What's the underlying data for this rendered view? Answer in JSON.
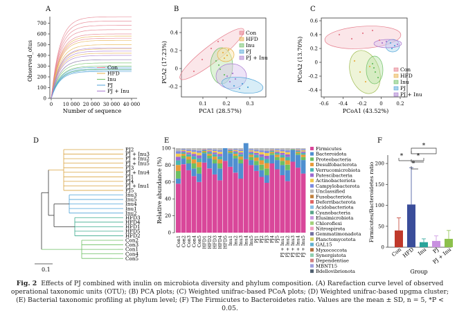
{
  "panels": {
    "A": {
      "label": "A",
      "ylabel": "Observed_otus",
      "xlabel": "Number of sequence",
      "yticks": [
        "0",
        "100",
        "200",
        "300",
        "400",
        "500",
        "600",
        "700"
      ],
      "xticks": [
        "0",
        "10 000",
        "20 000",
        "30 000",
        "40 000"
      ],
      "legend": [
        "Con",
        "HFD",
        "Inu",
        "PJ",
        "PJ + Inu"
      ]
    },
    "B": {
      "label": "B",
      "ylabel": "PCA2 (17.23%)",
      "xlabel": "PCA1 (28.57%)",
      "yticks": [
        "0.4",
        "0.2",
        "0",
        "-0.2"
      ],
      "xticks": [
        "0.1",
        "0.2",
        "0.3"
      ],
      "legend": [
        "Con",
        "HFD",
        "Inu",
        "PJ",
        "PJ + Inu"
      ]
    },
    "C": {
      "label": "C",
      "ylabel": "PCoA2 (13.70%)",
      "xlabel": "PCoA1 (43.52%)",
      "yticks": [
        "0.6",
        "0.4",
        "0.2",
        "0",
        "-0.2",
        "-0.4"
      ],
      "xticks": [
        "-0.6",
        "-0.4",
        "-0.2",
        "0",
        "0.2"
      ],
      "legend": [
        "Con",
        "HFD",
        "Inu",
        "PJ",
        "PJ + Inu"
      ]
    },
    "D": {
      "label": "D",
      "leaves": [
        "PJ2",
        "PJ + Inu3",
        "PJ + Inu2",
        "PJ + Inu5",
        "PJ3",
        "PJ + Inu4",
        "PJ1",
        "PJ4",
        "PJ + Inu1",
        "PJ5",
        "Inu3",
        "Inu5",
        "Inu4",
        "Inu1",
        "Inu2",
        "HFD3",
        "HFD4",
        "HFD1",
        "HFD5",
        "HFD2",
        "Con2",
        "Con3",
        "Con1",
        "Con4",
        "Con5"
      ],
      "scale": "0.1"
    },
    "E": {
      "label": "E",
      "ylabel": "Relative abundance (%)",
      "yticks": [
        "0",
        "20",
        "40",
        "60",
        "80",
        "100"
      ],
      "samples": [
        "Con1",
        "Con2",
        "Con3",
        "Con4",
        "Con5",
        "HFD1",
        "HFD2",
        "HFD3",
        "HFD4",
        "HFD5",
        "Inu1",
        "Inu2",
        "Inu3",
        "Inu4",
        "Inu5",
        "PJ1",
        "PJ2",
        "PJ3",
        "PJ4",
        "PJ5",
        "PJ + Inu1",
        "PJ + Inu2",
        "PJ + Inu3",
        "PJ + Inu4",
        "PJ + Inu5"
      ],
      "phyla": [
        "Firmicutes",
        "Bacteroidota",
        "Proteobacteria",
        "Desulfobacterota",
        "Verrucomicrobiota",
        "Patescibacteria",
        "Actinobacteriota",
        "Campylobacterota",
        "Unclassified",
        "Fusobacteriota",
        "Deferribacterota",
        "Acidobacteriota",
        "Cyanobacteria",
        "Elusimicrobiota",
        "Chloroflexi",
        "Nitrospirota",
        "Gemmatimonadota",
        "Planctomycetota",
        "GAL15",
        "Myxococcota",
        "Synergistota",
        "Dependentiae",
        "MBNT15",
        "Bdellovibrionota"
      ],
      "colors": [
        "#d9479a",
        "#4f8fd0",
        "#6cbf63",
        "#e89a3a",
        "#4bb6b0",
        "#9c6ad0",
        "#f2c94c",
        "#7d8be0",
        "#b8b8b8",
        "#c2813e",
        "#e06666",
        "#8cc0e8",
        "#5aa58a",
        "#c99be0",
        "#a3d17a",
        "#f0a0c0",
        "#7070a0",
        "#d0d060",
        "#60b0d0",
        "#b07040",
        "#90d0b0",
        "#d08080",
        "#a0a0e0",
        "#506070"
      ]
    },
    "F": {
      "label": "F",
      "ylabel": "Firmicutes/Bacteroidetes ratio",
      "xlabel": "Group",
      "yticks": [
        "0",
        "50",
        "100",
        "150",
        "200"
      ],
      "star": "*"
    }
  },
  "chart_data": [
    {
      "type": "bar",
      "title": "F",
      "categories": [
        "Con",
        "HFD",
        "Inu",
        "PJ",
        "PJ + Inu"
      ],
      "values": [
        40,
        102,
        12,
        15,
        20
      ],
      "errors": [
        30,
        88,
        8,
        12,
        20
      ],
      "colors": [
        "#c0392b",
        "#3a4d9a",
        "#2aa49a",
        "#c890e0",
        "#8cc04b"
      ],
      "xlabel": "Group",
      "ylabel": "Firmicutes/Bacteroidetes ratio",
      "ylim": [
        0,
        220
      ]
    }
  ],
  "caption": {
    "label": "Fig. 2",
    "text": "Effects of PJ combined with inulin on microbiota diversity and phylum composition. (A) Rarefaction curve level of observed operational taxonomic units (OTU); (B) PCA plots; (C) Weighted unifrac-based PCoA plots; (D) Weighted unifrac-based upgma cluster; (E) Bacterial taxonomic profiling at phylum level; (F) The Firmicutes to Bacteroidetes ratio. Values are the mean ± SD, n = 5, *P < 0.05."
  }
}
